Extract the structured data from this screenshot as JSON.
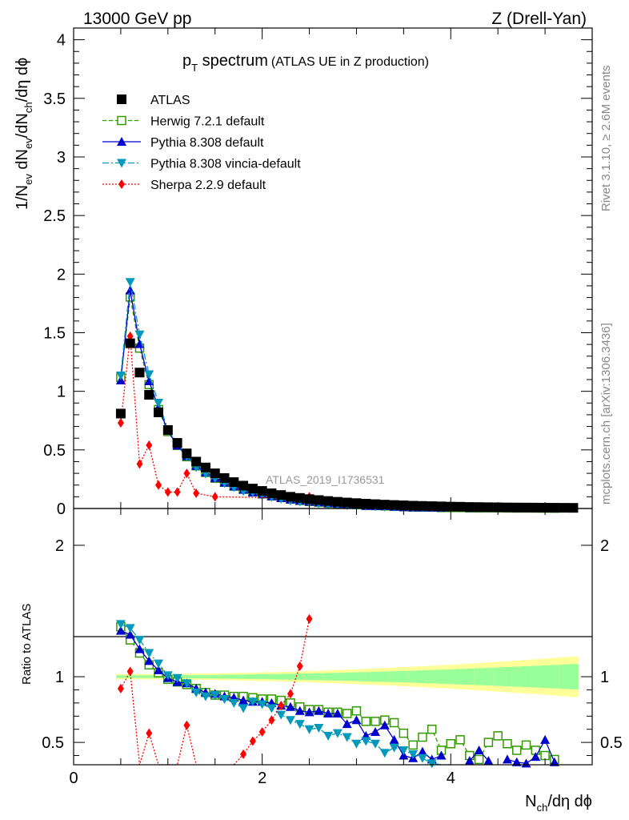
{
  "header": {
    "left": "13000 GeV pp",
    "right": "Z (Drell-Yan)"
  },
  "side_labels": {
    "rivet": "Rivet 3.1.10, ≥ 2.6M events",
    "mcplots": "mcplots.cern.ch [arXiv:1306.3436]"
  },
  "watermark": "ATLAS_2019_I1736531",
  "chart_data": {
    "type": "line",
    "title_main": "p",
    "title_sub": "T",
    "title_main2": " spectrum",
    "title_suffix": "(ATLAS UE in Z production)",
    "xlabel": {
      "main": "N",
      "sub": "ch",
      "rest": "/dη dϕ"
    },
    "ylabel": {
      "p1": "1/N",
      "s1": "ev",
      "p2": " dN",
      "s2": "ev",
      "p3": "/dN",
      "s3": "ch",
      "p4": "/dη dϕ"
    },
    "ratio_ylabel": "Ratio to ATLAS",
    "xlim": [
      0,
      5.5
    ],
    "ylim_main": [
      0,
      4.1
    ],
    "ylim_ratio": [
      0.33,
      2.28
    ],
    "x_ticks": [
      "0",
      "2",
      "4"
    ],
    "y_ticks_main": [
      "0",
      "0.5",
      "1",
      "1.5",
      "2",
      "2.5",
      "3",
      "3.5",
      "4"
    ],
    "y_ticks_ratio": [
      "0.5",
      "1",
      "2"
    ],
    "x": [
      0.5,
      0.6,
      0.7,
      0.8,
      0.9,
      1.0,
      1.1,
      1.2,
      1.3,
      1.4,
      1.5,
      1.6,
      1.7,
      1.8,
      1.9,
      2.0,
      2.1,
      2.2,
      2.3,
      2.4,
      2.5,
      2.6,
      2.7,
      2.8,
      2.9,
      3.0,
      3.1,
      3.2,
      3.3,
      3.4,
      3.5,
      3.6,
      3.7,
      3.8,
      3.9,
      4.0,
      4.1,
      4.2,
      4.3,
      4.4,
      4.5,
      4.6,
      4.7,
      4.8,
      4.9,
      5.0,
      5.1,
      5.2,
      5.3
    ],
    "series": [
      {
        "name": "ATLAS",
        "color": "#000000",
        "values": [
          0.81,
          1.41,
          1.16,
          0.97,
          0.82,
          0.67,
          0.56,
          0.47,
          0.4,
          0.35,
          0.3,
          0.26,
          0.225,
          0.195,
          0.17,
          0.15,
          0.13,
          0.115,
          0.1,
          0.09,
          0.08,
          0.072,
          0.064,
          0.057,
          0.051,
          0.046,
          0.041,
          0.037,
          0.033,
          0.03,
          0.027,
          0.024,
          0.022,
          0.02,
          0.018,
          0.016,
          0.015,
          0.013,
          0.012,
          0.011,
          0.01,
          0.009,
          0.0085,
          0.008,
          0.0075,
          0.007,
          0.0065,
          0.006,
          0.0055
        ]
      },
      {
        "name": "Herwig 7.2.1 default",
        "color": "#339900",
        "ratio": [
          1.38,
          1.28,
          1.18,
          1.09,
          1.03,
          0.98,
          0.96,
          0.94,
          0.91,
          0.88,
          0.86,
          0.86,
          0.85,
          0.85,
          0.84,
          0.83,
          0.83,
          0.82,
          0.8,
          0.77,
          0.75,
          0.75,
          0.73,
          0.73,
          0.72,
          0.74,
          0.66,
          0.66,
          0.67,
          0.65,
          0.57,
          0.48,
          0.54,
          0.6,
          0.44,
          0.49,
          0.52,
          0.4,
          0.37,
          0.5,
          0.55,
          0.49,
          0.44,
          0.48,
          0.44,
          0.4,
          0.37,
          null,
          null
        ]
      },
      {
        "name": "Pythia 8.308 default",
        "color": "#0000cc",
        "ratio": [
          1.35,
          1.32,
          1.21,
          1.12,
          1.05,
          0.99,
          0.96,
          0.95,
          0.91,
          0.88,
          0.87,
          0.85,
          0.84,
          0.82,
          0.81,
          0.81,
          0.8,
          0.78,
          0.77,
          0.74,
          0.73,
          0.74,
          0.72,
          0.72,
          0.64,
          0.67,
          0.55,
          0.58,
          0.63,
          0.52,
          0.4,
          0.38,
          0.43,
          0.37,
          0.4,
          null,
          null,
          0.36,
          0.44,
          0.36,
          null,
          0.37,
          0.35,
          0.34,
          0.39,
          0.52,
          0.35,
          null,
          null
        ]
      },
      {
        "name": "Pythia 8.308 vincia-default",
        "color": "#0099bb",
        "ratio": [
          1.4,
          1.37,
          1.28,
          1.18,
          1.1,
          1.01,
          0.99,
          0.95,
          0.88,
          0.85,
          0.86,
          0.83,
          0.8,
          0.76,
          0.81,
          0.79,
          0.76,
          0.71,
          0.67,
          0.64,
          0.6,
          0.61,
          0.55,
          0.57,
          0.54,
          0.49,
          0.51,
          0.49,
          0.42,
          0.46,
          0.44,
          0.41,
          0.38,
          0.34,
          0.3,
          0.29,
          null,
          null,
          null,
          null,
          null,
          null,
          null,
          null,
          null,
          null,
          null,
          null,
          null
        ]
      },
      {
        "name": "Sherpa 2.2.9 default",
        "color": "#ff0000",
        "ratio": [
          0.91,
          1.04,
          0.31,
          0.57,
          0.24,
          0.2,
          0.21,
          0.63,
          0.24,
          null,
          null,
          null,
          0.31,
          0.41,
          0.51,
          0.58,
          0.67,
          0.78,
          0.87,
          1.08,
          1.44,
          null,
          null,
          null,
          null,
          null,
          null,
          null,
          null,
          null,
          null,
          null,
          null,
          null,
          null,
          null,
          null,
          null,
          null,
          null,
          null,
          null,
          null,
          null,
          null,
          null,
          null,
          null,
          null
        ]
      }
    ],
    "sherpa_main": [
      0.73,
      1.47,
      0.38,
      0.54,
      0.2,
      0.14,
      0.14,
      0.3,
      0.13,
      null,
      0.1,
      null,
      null,
      null,
      null,
      null,
      null,
      null,
      0.09,
      null,
      0.1,
      null,
      null,
      null,
      null,
      null,
      null,
      null,
      null,
      null,
      null,
      null,
      null,
      null,
      null,
      null,
      null,
      null,
      null,
      null,
      null,
      null,
      null,
      null,
      null,
      null,
      null,
      null,
      null
    ]
  }
}
